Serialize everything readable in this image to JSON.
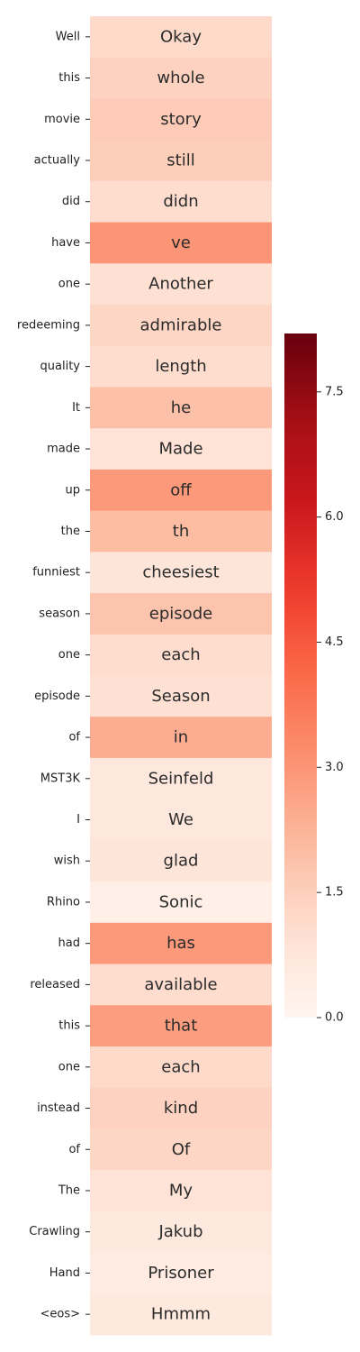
{
  "chart_data": {
    "type": "heatmap",
    "y_labels": [
      "Well",
      "this",
      "movie",
      "actually",
      "did",
      "have",
      "one",
      "redeeming",
      "quality",
      "It",
      "made",
      "up",
      "the",
      "funniest",
      "season",
      "one",
      "episode",
      "of",
      "MST3K",
      "I",
      "wish",
      "Rhino",
      "had",
      "released",
      "this",
      "one",
      "instead",
      "of",
      "The",
      "Crawling",
      "Hand",
      "<eos>"
    ],
    "cell_text": [
      "Okay",
      "whole",
      "story",
      "still",
      "didn",
      "ve",
      "Another",
      "admirable",
      "length",
      "he",
      "Made",
      "off",
      "th",
      "cheesiest",
      "episode",
      "each",
      "Season",
      "in",
      "Seinfeld",
      "We",
      "glad",
      "Sonic",
      "has",
      "available",
      "that",
      "each",
      "kind",
      "Of",
      "My",
      "Jakub",
      "Prisoner",
      "Hmmm"
    ],
    "values": [
      1.2,
      1.4,
      1.6,
      1.5,
      1.1,
      3.0,
      1.0,
      1.3,
      1.1,
      1.9,
      0.9,
      2.9,
      2.0,
      0.8,
      1.8,
      1.1,
      1.0,
      2.4,
      0.7,
      0.7,
      0.8,
      0.3,
      2.9,
      1.1,
      2.8,
      1.2,
      1.4,
      1.3,
      0.9,
      0.6,
      0.5,
      0.6
    ],
    "colorbar": {
      "min": 0.0,
      "max": 8.2,
      "ticks": [
        0.0,
        1.5,
        3.0,
        4.5,
        6.0,
        7.5
      ],
      "tick_labels": [
        "0.0",
        "1.5",
        "3.0",
        "4.5",
        "6.0",
        "7.5"
      ]
    },
    "colormap": "Reds"
  }
}
